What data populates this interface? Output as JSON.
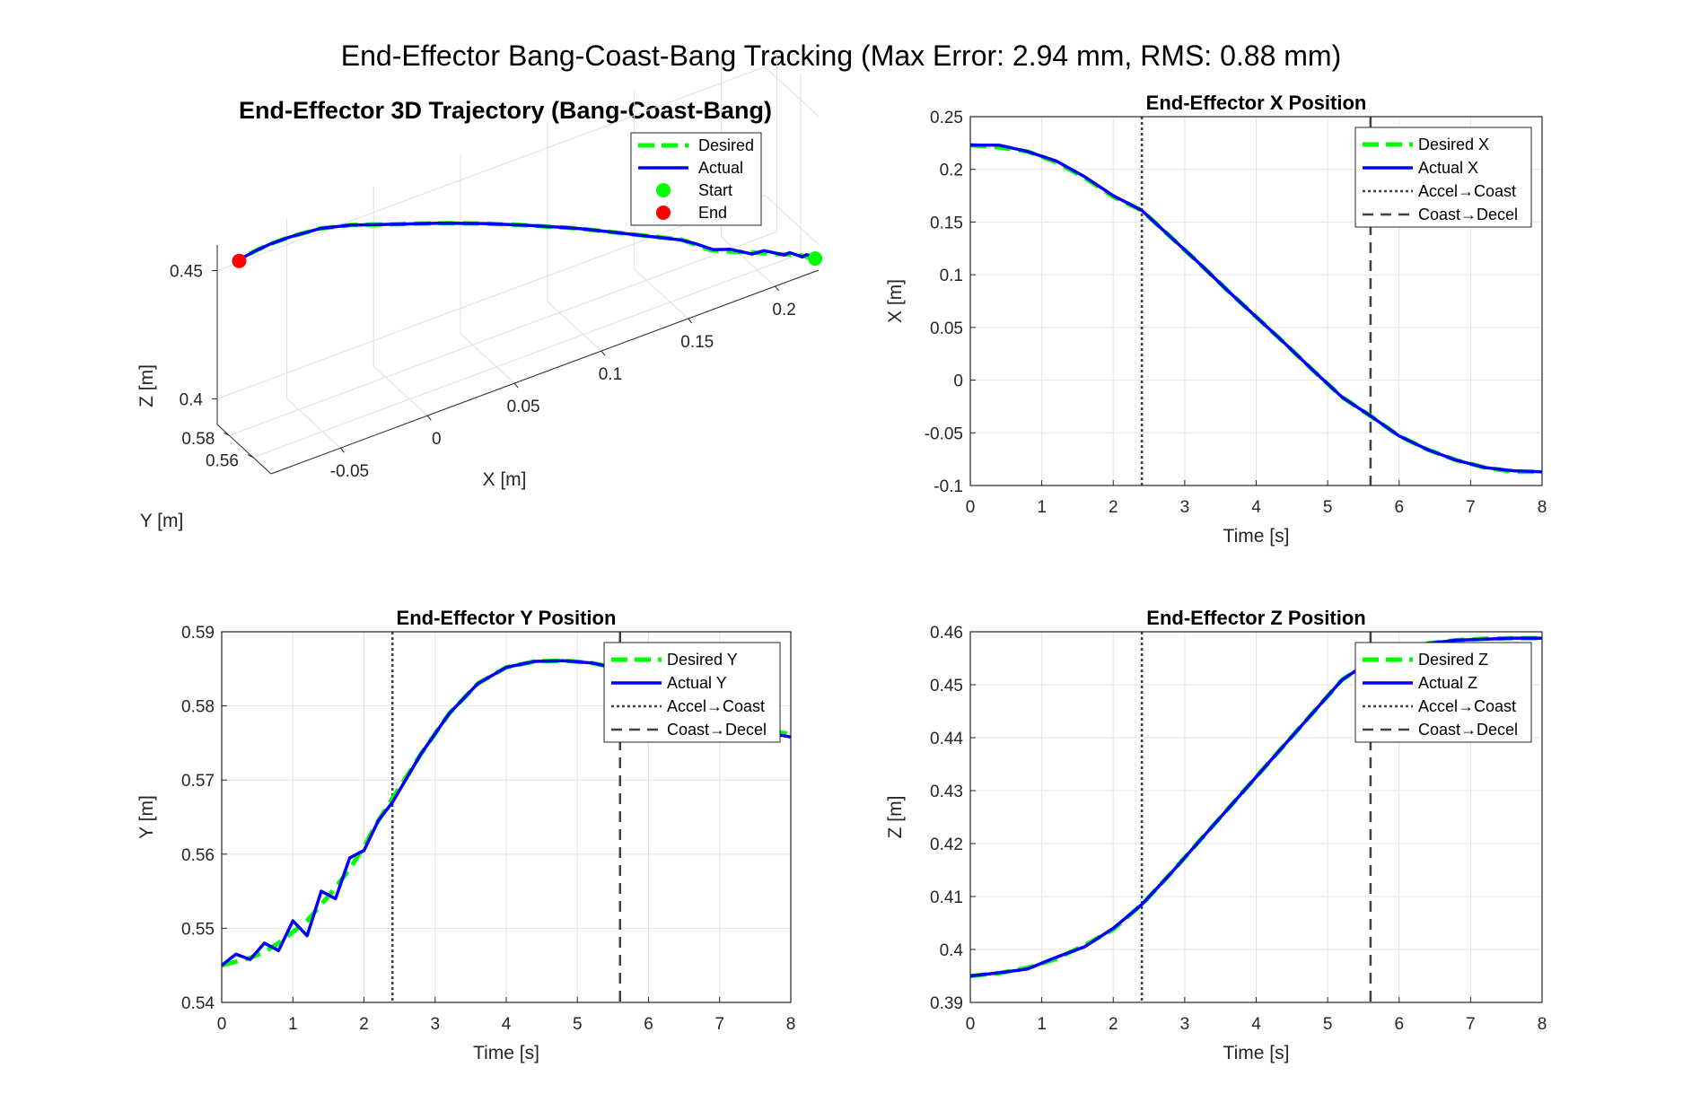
{
  "suptitle": "End-Effector Bang-Coast-Bang Tracking (Max Error: 2.94 mm, RMS: 0.88 mm)",
  "colors": {
    "desired": "#00ff00",
    "actual": "#0000ff",
    "start": "#00ff00",
    "end": "#ff0000",
    "phase_line": "#404040"
  },
  "chart_data": [
    {
      "type": "line",
      "id": "traj3d",
      "title": "End-Effector 3D Trajectory (Bang-Coast-Bang)",
      "xlabel": "X [m]",
      "ylabel": "Y [m]",
      "zlabel": "Z [m]",
      "x_ticks": [
        "-0.05",
        "0",
        "0.05",
        "0.1",
        "0.15",
        "0.2"
      ],
      "y_ticks": [
        "0.56",
        "0.58"
      ],
      "z_ticks": [
        "0.4",
        "0.45"
      ],
      "grid": true,
      "legend": [
        "Desired",
        "Actual",
        "Start",
        "End"
      ],
      "legend_position": "top-right",
      "start": {
        "x": 0.223,
        "y": 0.545,
        "z": 0.395
      },
      "end": {
        "x": -0.087,
        "y": 0.576,
        "z": 0.459
      }
    },
    {
      "type": "line",
      "id": "xpos",
      "title": "End-Effector X Position",
      "xlabel": "Time [s]",
      "ylabel": "X [m]",
      "xlim": [
        0,
        8
      ],
      "ylim": [
        -0.1,
        0.25
      ],
      "x_ticks": [
        "0",
        "1",
        "2",
        "3",
        "4",
        "5",
        "6",
        "7",
        "8"
      ],
      "y_ticks": [
        "-0.1",
        "-0.05",
        "0",
        "0.05",
        "0.1",
        "0.15",
        "0.2",
        "0.25"
      ],
      "grid": true,
      "legend": [
        "Desired X",
        "Actual X",
        "Accel→Coast",
        "Coast→Decel"
      ],
      "legend_position": "top-right",
      "phase_times": [
        2.4,
        5.6
      ],
      "x": [
        0,
        0.4,
        0.8,
        1.2,
        1.6,
        2.0,
        2.4,
        2.8,
        3.2,
        3.6,
        4.0,
        4.4,
        4.8,
        5.2,
        5.6,
        6.0,
        6.4,
        6.8,
        7.2,
        7.6,
        8.0
      ],
      "series": [
        {
          "name": "Desired X",
          "values": [
            0.223,
            0.221,
            0.217,
            0.207,
            0.192,
            0.174,
            0.161,
            0.136,
            0.111,
            0.085,
            0.06,
            0.035,
            0.009,
            -0.016,
            -0.034,
            -0.053,
            -0.066,
            -0.076,
            -0.083,
            -0.087,
            -0.087
          ]
        },
        {
          "name": "Actual X",
          "values": [
            0.223,
            0.223,
            0.217,
            0.208,
            0.193,
            0.175,
            0.161,
            0.136,
            0.111,
            0.085,
            0.06,
            0.035,
            0.009,
            -0.016,
            -0.034,
            -0.053,
            -0.066,
            -0.076,
            -0.083,
            -0.086,
            -0.087
          ]
        }
      ]
    },
    {
      "type": "line",
      "id": "ypos",
      "title": "End-Effector Y Position",
      "xlabel": "Time [s]",
      "ylabel": "Y [m]",
      "xlim": [
        0,
        8
      ],
      "ylim": [
        0.54,
        0.59
      ],
      "x_ticks": [
        "0",
        "1",
        "2",
        "3",
        "4",
        "5",
        "6",
        "7",
        "8"
      ],
      "y_ticks": [
        "0.54",
        "0.55",
        "0.56",
        "0.57",
        "0.58",
        "0.59"
      ],
      "grid": true,
      "legend": [
        "Desired Y",
        "Actual Y",
        "Accel→Coast",
        "Coast→Decel"
      ],
      "legend_position": "top-right",
      "phase_times": [
        2.4,
        5.6
      ],
      "x": [
        0,
        0.2,
        0.4,
        0.6,
        0.8,
        1.0,
        1.2,
        1.4,
        1.6,
        1.8,
        2.0,
        2.2,
        2.4,
        2.8,
        3.2,
        3.6,
        4.0,
        4.4,
        4.8,
        5.2,
        5.6,
        6.0,
        6.4,
        6.8,
        7.2,
        7.6,
        8.0
      ],
      "series": [
        {
          "name": "Desired Y",
          "values": [
            0.545,
            0.5455,
            0.546,
            0.5468,
            0.548,
            0.5495,
            0.551,
            0.5532,
            0.5555,
            0.558,
            0.561,
            0.5645,
            0.5675,
            0.5735,
            0.579,
            0.583,
            0.5852,
            0.586,
            0.5861,
            0.5858,
            0.585,
            0.5835,
            0.5815,
            0.5795,
            0.578,
            0.5768,
            0.5762
          ]
        },
        {
          "name": "Actual Y",
          "values": [
            0.545,
            0.5465,
            0.5458,
            0.548,
            0.547,
            0.551,
            0.549,
            0.555,
            0.554,
            0.5595,
            0.5605,
            0.5645,
            0.567,
            0.5735,
            0.579,
            0.583,
            0.5852,
            0.586,
            0.5861,
            0.5858,
            0.585,
            0.5835,
            0.5815,
            0.5795,
            0.578,
            0.5765,
            0.5758
          ]
        }
      ]
    },
    {
      "type": "line",
      "id": "zpos",
      "title": "End-Effector Z Position",
      "xlabel": "Time [s]",
      "ylabel": "Z [m]",
      "xlim": [
        0,
        8
      ],
      "ylim": [
        0.39,
        0.46
      ],
      "x_ticks": [
        "0",
        "1",
        "2",
        "3",
        "4",
        "5",
        "6",
        "7",
        "8"
      ],
      "y_ticks": [
        "0.39",
        "0.4",
        "0.41",
        "0.42",
        "0.43",
        "0.44",
        "0.45",
        "0.46"
      ],
      "grid": true,
      "legend": [
        "Desired Z",
        "Actual Z",
        "Accel→Coast",
        "Coast→Decel"
      ],
      "legend_position": "top-right",
      "phase_times": [
        2.4,
        5.6
      ],
      "x": [
        0,
        0.4,
        0.8,
        1.2,
        1.6,
        2.0,
        2.4,
        2.8,
        3.2,
        3.6,
        4.0,
        4.4,
        4.8,
        5.2,
        5.6,
        6.0,
        6.4,
        6.8,
        7.2,
        7.6,
        8.0
      ],
      "series": [
        {
          "name": "Desired Z",
          "values": [
            0.395,
            0.3955,
            0.3965,
            0.3982,
            0.4008,
            0.4038,
            0.4085,
            0.4143,
            0.4204,
            0.4265,
            0.4326,
            0.4387,
            0.4448,
            0.4509,
            0.4545,
            0.4565,
            0.4578,
            0.4584,
            0.4587,
            0.4588,
            0.4588
          ]
        },
        {
          "name": "Actual Z",
          "values": [
            0.395,
            0.3956,
            0.3963,
            0.3985,
            0.4005,
            0.404,
            0.4085,
            0.4143,
            0.4204,
            0.4265,
            0.4326,
            0.4387,
            0.4448,
            0.4509,
            0.4545,
            0.4565,
            0.4578,
            0.4584,
            0.4586,
            0.4588,
            0.4588
          ]
        }
      ]
    }
  ]
}
